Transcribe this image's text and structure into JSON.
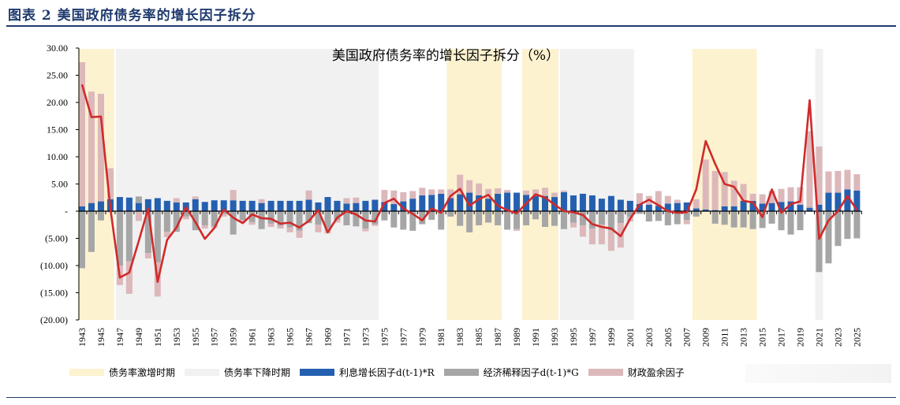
{
  "figure_title": "图表 2   美国政府债务率的增长因子拆分",
  "colors": {
    "rising": "#fdf2d0",
    "falling": "#f1f1f1",
    "interest": "#2560b0",
    "growth": "#a6a6a6",
    "fiscal": "#dcb8bb",
    "line": "#d02a2a",
    "header": "#1f3a6e"
  },
  "chart_data": {
    "type": "bar+line",
    "title": "美国政府债务率的增长因子拆分（%）",
    "ylim": [
      -20,
      30
    ],
    "yticks": [
      30,
      25,
      20,
      15,
      10,
      5,
      0,
      -5,
      -10,
      -15,
      -20
    ],
    "ytick_labels": [
      "30.00",
      "25.00",
      "20.00",
      "15.00",
      "10.00",
      "5.00",
      "-",
      "(5.00)",
      "(10.00)",
      "(15.00)",
      "(20.00)"
    ],
    "years": [
      1943,
      1944,
      1945,
      1946,
      1947,
      1948,
      1949,
      1950,
      1951,
      1952,
      1953,
      1954,
      1955,
      1956,
      1957,
      1958,
      1959,
      1960,
      1961,
      1962,
      1963,
      1964,
      1965,
      1966,
      1967,
      1968,
      1969,
      1970,
      1971,
      1972,
      1973,
      1974,
      1975,
      1976,
      1977,
      1978,
      1979,
      1980,
      1981,
      1982,
      1983,
      1984,
      1985,
      1986,
      1987,
      1988,
      1989,
      1990,
      1991,
      1992,
      1993,
      1994,
      1995,
      1996,
      1997,
      1998,
      1999,
      2000,
      2001,
      2002,
      2003,
      2004,
      2005,
      2006,
      2007,
      2008,
      2009,
      2010,
      2011,
      2012,
      2013,
      2014,
      2015,
      2016,
      2017,
      2018,
      2019,
      2020,
      2021,
      2022,
      2023,
      2024,
      2025
    ],
    "xtick_labels": [
      "1943",
      "1945",
      "1947",
      "1949",
      "1951",
      "1953",
      "1955",
      "1957",
      "1959",
      "1961",
      "1963",
      "1965",
      "1967",
      "1969",
      "1971",
      "1973",
      "1975",
      "1977",
      "1979",
      "1981",
      "1983",
      "1985",
      "1987",
      "1989",
      "1991",
      "1993",
      "1995",
      "1997",
      "1999",
      "2001",
      "2003",
      "2005",
      "2007",
      "2009",
      "2011",
      "2013",
      "2015",
      "2017",
      "2019",
      "2021",
      "2023",
      "2025"
    ],
    "periods": [
      {
        "type": "rising",
        "start": 1943,
        "end": 1946
      },
      {
        "type": "falling",
        "start": 1947,
        "end": 1974
      },
      {
        "type": "rising",
        "start": 1982,
        "end": 1987
      },
      {
        "type": "rising",
        "start": 1990,
        "end": 1993
      },
      {
        "type": "falling",
        "start": 1994,
        "end": 2001
      },
      {
        "type": "rising",
        "start": 2008,
        "end": 2014
      },
      {
        "type": "falling",
        "start": 2021,
        "end": 2021
      }
    ],
    "series": [
      {
        "name": "利息增长因子d(t-1)*R",
        "kind": "bar",
        "values": [
          0.9,
          1.5,
          1.8,
          2.2,
          2.6,
          2.5,
          1.5,
          2.2,
          2.4,
          1.9,
          1.6,
          1.6,
          2.2,
          1.7,
          2.0,
          2.0,
          2.0,
          1.9,
          1.9,
          1.5,
          1.9,
          1.9,
          1.9,
          1.9,
          2.1,
          1.6,
          2.6,
          1.9,
          1.4,
          1.5,
          1.9,
          2.1,
          1.7,
          1.3,
          1.8,
          2.3,
          2.9,
          3.0,
          3.2,
          2.4,
          3.1,
          3.4,
          2.9,
          2.3,
          3.2,
          3.4,
          3.4,
          3.0,
          2.8,
          2.8,
          2.6,
          3.5,
          2.9,
          3.2,
          2.9,
          2.3,
          2.8,
          2.1,
          1.9,
          1.3,
          1.2,
          1.0,
          1.4,
          1.5,
          1.6,
          0.5,
          0.3,
          0.2,
          0.9,
          0.9,
          1.9,
          1.9,
          1.4,
          1.5,
          1.7,
          1.8,
          1.2,
          0.6,
          1.2,
          3.4,
          3.4,
          4.0,
          3.8
        ]
      },
      {
        "name": "经济稀释因子d(t-1)*G",
        "kind": "bar",
        "values": [
          -10.5,
          -7.5,
          -1.7,
          -0.2,
          -10,
          -9.2,
          1.2,
          -7.7,
          -9.4,
          -3.8,
          -3.8,
          -1,
          -3.5,
          -2.6,
          -2.8,
          -0.5,
          -4.3,
          -1.6,
          -2.0,
          -3.3,
          -2.3,
          -2.7,
          -3.0,
          -3.6,
          -2.2,
          -2.5,
          -3.3,
          -1.6,
          -2.6,
          -2.8,
          -3.2,
          -2.4,
          -1.7,
          -3.0,
          -3.4,
          -3.6,
          -2.4,
          -1.6,
          -3.4,
          -1.0,
          -2.7,
          -3.9,
          -2.6,
          -2.1,
          -2.6,
          -3.4,
          -3.3,
          -2.6,
          -1.5,
          -2.9,
          -2.7,
          -3.3,
          -2.1,
          -2.6,
          -3.2,
          -2.5,
          -3.5,
          -2.2,
          -1.0,
          -0.5,
          -1.9,
          -1.8,
          -2.6,
          -2.4,
          -1.6,
          -1.0,
          0.1,
          -2.3,
          -2.5,
          -3.0,
          -3.0,
          -3.3,
          -3.1,
          -2.3,
          -3.5,
          -4.3,
          -3.5,
          0.2,
          -11.2,
          -9.6,
          -6.4,
          -5.1,
          -5.0
        ]
      },
      {
        "name": "财政盈余因子",
        "kind": "bar",
        "values": [
          26.5,
          20.5,
          19.8,
          5.7,
          -3.6,
          -6,
          -1.8,
          -1,
          -6.3,
          -1,
          0.8,
          -0.5,
          0.5,
          -0.6,
          -0.3,
          -0.5,
          1.9,
          -0.5,
          -0.5,
          0.7,
          -0.6,
          -0.5,
          -0.9,
          -1.3,
          1.7,
          -1.4,
          -0.8,
          -0.5,
          1.0,
          1.0,
          -0.5,
          -0.3,
          2.2,
          2.5,
          1.7,
          1.4,
          1.4,
          1.0,
          0.8,
          1.6,
          3.6,
          2.3,
          2.2,
          1.8,
          1.0,
          0.5,
          -0.3,
          0.8,
          1.2,
          1.5,
          0.8,
          0.3,
          -0.9,
          -2.1,
          -2.9,
          -3.6,
          -3.8,
          -4.5,
          -0.9,
          2.0,
          1.6,
          2.7,
          1.4,
          0.6,
          -0.8,
          1.7,
          9.1,
          7.2,
          6.3,
          4.7,
          3.1,
          1.3,
          1.7,
          2.2,
          2.4,
          2.6,
          3.2,
          13.9,
          10.7,
          3.9,
          4.0,
          3.6,
          3.0
        ]
      },
      {
        "kind": "line",
        "values": [
          23.3,
          17.3,
          17.4,
          0.5,
          -12.2,
          -11.3,
          -5.5,
          0.5,
          -13,
          -5.3,
          -3,
          0.7,
          -2,
          -5.1,
          -3.1,
          0.3,
          -1.2,
          -2.2,
          -0.6,
          -1.3,
          -1.4,
          -2.3,
          -2.1,
          -3,
          -1.8,
          0.2,
          -3.9,
          -1.2,
          0,
          -0.6,
          -1.7,
          -1.9,
          1.5,
          2.3,
          0.5,
          -0.5,
          -1.7,
          0.5,
          -0.3,
          2.8,
          4.1,
          1,
          2.2,
          3,
          1,
          0.2,
          -0.4,
          1.4,
          3.1,
          2.5,
          1.2,
          0,
          -0.2,
          -0.7,
          -2.4,
          -2.9,
          -3.2,
          -4.6,
          -1.4,
          1.2,
          2.1,
          1.1,
          0,
          -0.3,
          -0.2,
          4,
          12.9,
          8.7,
          5,
          4.5,
          1.9,
          1.6,
          -1.1,
          4,
          -0.3,
          1.3,
          1.8,
          20.4,
          -5.1,
          -1.7,
          0,
          2.8,
          0.2
        ]
      }
    ],
    "legend": [
      "债务率激增时期",
      "债务率下降时期",
      "利息增长因子d(t-1)*R",
      "经济稀释因子d(t-1)*G",
      "财政盈余因子"
    ],
    "legend_position": "bottom"
  }
}
